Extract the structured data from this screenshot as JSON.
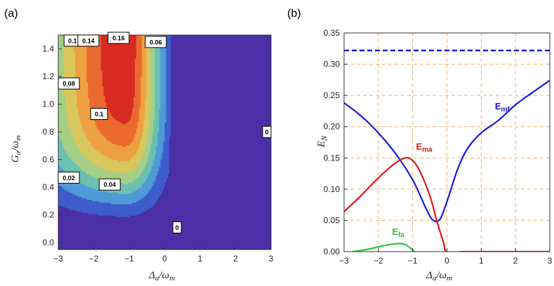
{
  "figure_labels": {
    "a": "(a)",
    "b": "(b)"
  },
  "chart_data": [
    {
      "type": "heatmap",
      "panel": "(a)",
      "title": "",
      "xlabel": "Δa/ωm",
      "ylabel": "Ga/ωm",
      "xlim": [
        -3,
        3
      ],
      "ylim": [
        -0.05,
        1.5
      ],
      "xticks": [
        "-3",
        "-2",
        "-1",
        "0",
        "1",
        "2",
        "3"
      ],
      "yticks": [
        "0.0",
        "0.2",
        "0.4",
        "0.6",
        "0.8",
        "1.0",
        "1.2",
        "1.4"
      ],
      "contour_levels": [
        0.02,
        0.04,
        0.06,
        0.08,
        0.1,
        0.12,
        0.14,
        0.16
      ],
      "contour_labels": [
        {
          "text": "0.1",
          "x": -2.6,
          "y": 1.46
        },
        {
          "text": "0.14",
          "x": -2.15,
          "y": 1.46
        },
        {
          "text": "0.16",
          "x": -1.3,
          "y": 1.5
        },
        {
          "text": "0.06",
          "x": -0.25,
          "y": 1.45
        },
        {
          "text": "0.08",
          "x": -2.85,
          "y": 1.15
        },
        {
          "text": "0.1",
          "x": -1.85,
          "y": 0.93
        },
        {
          "text": "0",
          "x": 2.95,
          "y": 0.8
        },
        {
          "text": "0.02",
          "x": -2.85,
          "y": 0.47
        },
        {
          "text": "0.04",
          "x": -1.55,
          "y": 0.42
        },
        {
          "text": "0",
          "x": 0.35,
          "y": 0.11
        }
      ],
      "peak": {
        "x": -1.1,
        "y": 1.35,
        "value": 0.17
      },
      "colormap": [
        "#4a2fa8",
        "#3f5ccc",
        "#4f9ad7",
        "#6cc0b2",
        "#a5cf86",
        "#d7c75c",
        "#eea142",
        "#ea6a2f",
        "#d82a22"
      ]
    },
    {
      "type": "line",
      "panel": "(b)",
      "title": "",
      "xlabel": "Δa/ωm",
      "ylabel": "EN",
      "xlim": [
        -3,
        3
      ],
      "ylim": [
        0,
        0.35
      ],
      "xticks": [
        "-3",
        "-2",
        "-1",
        "0",
        "1",
        "2",
        "3"
      ],
      "yticks": [
        "0.00",
        "0.05",
        "0.10",
        "0.15",
        "0.20",
        "0.25",
        "0.30",
        "0.35"
      ],
      "grid": true,
      "series": [
        {
          "name": "Emf",
          "color": "#1a1adc",
          "dashed": false,
          "x": [
            -3,
            -2.5,
            -2,
            -1.5,
            -1,
            -0.6,
            -0.4,
            -0.2,
            0,
            0.3,
            0.6,
            1,
            1.5,
            2,
            2.5,
            3
          ],
          "y": [
            0.238,
            0.217,
            0.19,
            0.157,
            0.115,
            0.068,
            0.05,
            0.052,
            0.08,
            0.13,
            0.165,
            0.19,
            0.21,
            0.235,
            0.255,
            0.274
          ]
        },
        {
          "name": "Ema",
          "color": "#dd1a1a",
          "dashed": false,
          "x": [
            -3,
            -2.5,
            -2,
            -1.5,
            -1.2,
            -1,
            -0.8,
            -0.5,
            -0.3,
            -0.1,
            0,
            0.5,
            1,
            2,
            3
          ],
          "y": [
            0.064,
            0.09,
            0.118,
            0.142,
            0.15,
            0.146,
            0.13,
            0.09,
            0.05,
            0.015,
            0,
            0,
            0,
            0,
            0
          ]
        },
        {
          "name": "Efa",
          "color": "#2ec43a",
          "dashed": false,
          "x": [
            -2.75,
            -2.5,
            -2.2,
            -1.9,
            -1.6,
            -1.35,
            -1.2,
            -1.05,
            -0.95
          ],
          "y": [
            0,
            0.002,
            0.005,
            0.009,
            0.012,
            0.013,
            0.011,
            0.005,
            0
          ]
        },
        {
          "name": "dashed-reference",
          "color": "#1a1adc",
          "dashed": true,
          "x": [
            -3,
            3
          ],
          "y": [
            0.322,
            0.322
          ]
        }
      ],
      "annotations": [
        {
          "text": "Emf",
          "x": 1.4,
          "y": 0.228
        },
        {
          "text": "Ema",
          "x": -0.9,
          "y": 0.163
        },
        {
          "text": "Efa",
          "x": -1.6,
          "y": 0.027
        }
      ]
    }
  ]
}
